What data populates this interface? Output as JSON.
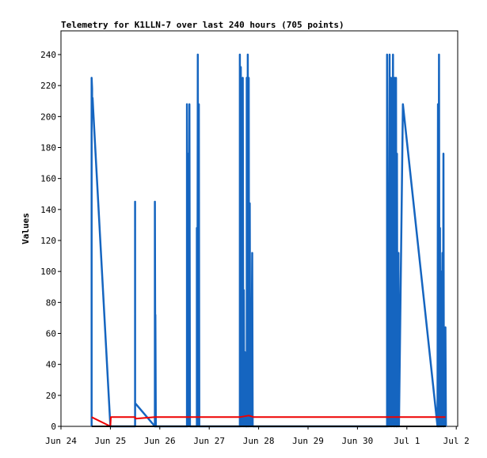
{
  "chart_data": {
    "type": "line",
    "title": "Telemetry for K1LLN-7 over last 240 hours (705 points)",
    "xlabel": "",
    "ylabel": "Values",
    "x_ticks": [
      "Jun 24",
      "Jun 25",
      "Jun 26",
      "Jun 27",
      "Jun 28",
      "Jun 29",
      "Jun 30",
      "Jul 1",
      "Jul 2"
    ],
    "y_ticks": [
      0,
      20,
      40,
      60,
      80,
      100,
      120,
      140,
      160,
      180,
      200,
      220,
      240
    ],
    "xlim_days": [
      0,
      8
    ],
    "ylim": [
      0,
      255
    ],
    "grid": false,
    "legend": "none",
    "colors": {
      "series1": "#1565c0",
      "series2": "#ee0000",
      "series3": "#000000"
    },
    "series": [
      {
        "color": "#1565c0",
        "points": [
          [
            0.62,
            0
          ],
          [
            0.62,
            225
          ],
          [
            0.63,
            218
          ],
          [
            0.63,
            205
          ],
          [
            0.64,
            212
          ],
          [
            0.65,
            205
          ],
          [
            1.0,
            0
          ],
          [
            1.5,
            0
          ],
          [
            1.5,
            145
          ],
          [
            1.5,
            15
          ],
          [
            1.9,
            0
          ],
          [
            1.9,
            145
          ],
          [
            1.91,
            0
          ],
          [
            1.91,
            72
          ],
          [
            1.92,
            0
          ],
          [
            2.55,
            0
          ],
          [
            2.55,
            208
          ],
          [
            2.56,
            0
          ],
          [
            2.57,
            176
          ],
          [
            2.58,
            0
          ],
          [
            2.6,
            208
          ],
          [
            2.61,
            0
          ],
          [
            2.75,
            0
          ],
          [
            2.75,
            128
          ],
          [
            2.76,
            0
          ],
          [
            2.77,
            240
          ],
          [
            2.78,
            0
          ],
          [
            2.79,
            208
          ],
          [
            2.8,
            0
          ],
          [
            3.62,
            0
          ],
          [
            3.62,
            240
          ],
          [
            3.63,
            0
          ],
          [
            3.64,
            232
          ],
          [
            3.65,
            0
          ],
          [
            3.66,
            208
          ],
          [
            3.67,
            0
          ],
          [
            3.68,
            225
          ],
          [
            3.69,
            0
          ],
          [
            3.7,
            88
          ],
          [
            3.71,
            0
          ],
          [
            3.72,
            48
          ],
          [
            3.73,
            0
          ],
          [
            3.76,
            0
          ],
          [
            3.76,
            225
          ],
          [
            3.77,
            0
          ],
          [
            3.78,
            240
          ],
          [
            3.79,
            0
          ],
          [
            3.8,
            225
          ],
          [
            3.81,
            0
          ],
          [
            3.82,
            144
          ],
          [
            3.83,
            0
          ],
          [
            3.84,
            56
          ],
          [
            3.85,
            0
          ],
          [
            3.87,
            112
          ],
          [
            3.88,
            0
          ],
          [
            6.6,
            0
          ],
          [
            6.6,
            240
          ],
          [
            6.61,
            0
          ],
          [
            6.62,
            112
          ],
          [
            6.63,
            0
          ],
          [
            6.65,
            240
          ],
          [
            6.66,
            0
          ],
          [
            6.68,
            225
          ],
          [
            6.69,
            0
          ],
          [
            6.72,
            240
          ],
          [
            6.73,
            0
          ],
          [
            6.75,
            225
          ],
          [
            6.76,
            0
          ],
          [
            6.78,
            225
          ],
          [
            6.79,
            0
          ],
          [
            6.8,
            176
          ],
          [
            6.81,
            0
          ],
          [
            6.83,
            112
          ],
          [
            6.84,
            0
          ],
          [
            6.92,
            208
          ],
          [
            7.62,
            0
          ],
          [
            7.63,
            208
          ],
          [
            7.64,
            0
          ],
          [
            7.65,
            240
          ],
          [
            7.66,
            0
          ],
          [
            7.67,
            128
          ],
          [
            7.68,
            0
          ],
          [
            7.69,
            100
          ],
          [
            7.7,
            0
          ],
          [
            7.72,
            112
          ],
          [
            7.73,
            0
          ],
          [
            7.74,
            176
          ],
          [
            7.75,
            0
          ],
          [
            7.78,
            64
          ],
          [
            7.79,
            0
          ]
        ]
      },
      {
        "color": "#ee0000",
        "points": [
          [
            0.62,
            6
          ],
          [
            1.0,
            0
          ],
          [
            1.01,
            6
          ],
          [
            1.5,
            6
          ],
          [
            1.51,
            5
          ],
          [
            1.9,
            6
          ],
          [
            2.55,
            6
          ],
          [
            2.85,
            6
          ],
          [
            3.62,
            6
          ],
          [
            3.8,
            7
          ],
          [
            3.9,
            6
          ],
          [
            6.6,
            6
          ],
          [
            7.78,
            6
          ]
        ]
      },
      {
        "color": "#000000",
        "points": [
          [
            0.62,
            0
          ],
          [
            7.79,
            0
          ]
        ]
      }
    ]
  }
}
